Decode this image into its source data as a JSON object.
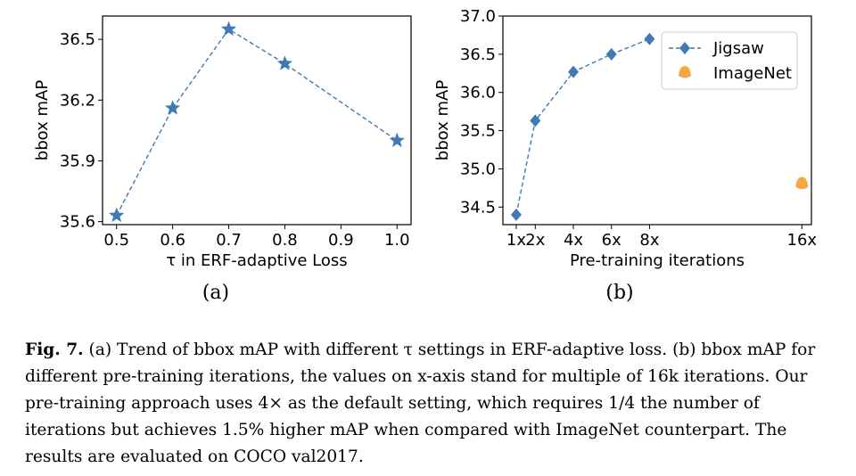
{
  "panels": [
    {
      "sub_label": "(a)"
    },
    {
      "sub_label": "(b)"
    }
  ],
  "caption": {
    "fig_label": "Fig. 7.",
    "text": "(a) Trend of bbox mAP with different τ settings in ERF-adaptive loss. (b) bbox mAP for different pre-training iterations, the values on x-axis stand for multiple of 16k iterations. Our pre-training approach uses 4× as the default setting, which requires 1/4 the number of iterations but achieves 1.5% higher mAP when compared with ImageNet counterpart. The results are evaluated on COCO val2017."
  },
  "colors": {
    "series_blue": "#3f7ab5",
    "imagenet_orange": "#f5a742"
  },
  "chart_data": [
    {
      "type": "line",
      "title": "",
      "xlabel": "τ in ERF-adaptive Loss",
      "ylabel": "bbox mAP",
      "x": [
        0.5,
        0.6,
        0.7,
        0.8,
        1.0
      ],
      "series": [
        {
          "marker": "star",
          "style": "dashed",
          "values": [
            35.63,
            36.16,
            36.55,
            36.38,
            36.0
          ]
        }
      ],
      "xticks": [
        "0.5",
        "0.6",
        "0.7",
        "0.8",
        "0.9",
        "1.0"
      ],
      "xtick_values": [
        0.5,
        0.6,
        0.7,
        0.8,
        0.9,
        1.0
      ],
      "yticks": [
        "35.6",
        "35.9",
        "36.2",
        "36.5"
      ],
      "ytick_values": [
        35.6,
        35.9,
        36.2,
        36.5
      ],
      "xlim": [
        0.475,
        1.025
      ],
      "ylim": [
        35.585,
        36.615
      ],
      "grid": false
    },
    {
      "type": "line",
      "title": "",
      "xlabel": "Pre-training iterations",
      "ylabel": "bbox mAP",
      "series": [
        {
          "name": "Jigsaw",
          "marker": "diamond",
          "style": "dashed",
          "x": [
            1,
            2,
            4,
            6,
            8
          ],
          "values": [
            34.4,
            35.63,
            36.27,
            36.5,
            36.7
          ]
        },
        {
          "name": "ImageNet",
          "marker": "circle",
          "style": "none",
          "x": [
            16
          ],
          "values": [
            34.8
          ]
        }
      ],
      "xticks": [
        "1x",
        "2x",
        "4x",
        "6x",
        "8x",
        "16x"
      ],
      "xtick_values": [
        1,
        2,
        4,
        6,
        8,
        16
      ],
      "yticks": [
        "34.5",
        "35.0",
        "35.5",
        "36.0",
        "36.5",
        "37.0"
      ],
      "ytick_values": [
        34.5,
        35.0,
        35.5,
        36.0,
        36.5,
        37.0
      ],
      "xlim": [
        0.3,
        16.5
      ],
      "ylim": [
        34.27,
        37.0
      ],
      "legend_position": "top-right",
      "grid": false
    }
  ]
}
